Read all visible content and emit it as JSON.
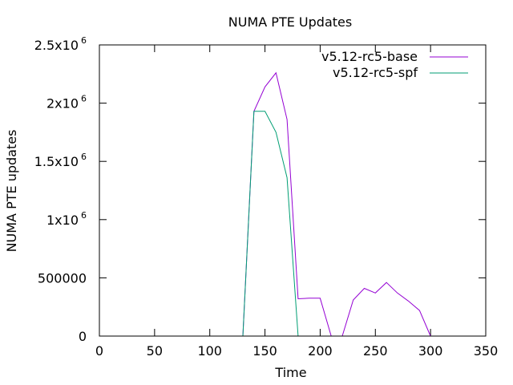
{
  "chart_data": {
    "type": "line",
    "title": "NUMA PTE Updates",
    "xlabel": "Time",
    "ylabel": "NUMA PTE updates",
    "xlim": [
      0,
      350
    ],
    "ylim": [
      0,
      2500000
    ],
    "grid": false,
    "legend_position": "top-right",
    "x_ticks": [
      {
        "value": 0,
        "label": "0"
      },
      {
        "value": 50,
        "label": "50"
      },
      {
        "value": 100,
        "label": "100"
      },
      {
        "value": 150,
        "label": "150"
      },
      {
        "value": 200,
        "label": "200"
      },
      {
        "value": 250,
        "label": "250"
      },
      {
        "value": 300,
        "label": "300"
      },
      {
        "value": 350,
        "label": "350"
      }
    ],
    "y_ticks": [
      {
        "value": 0,
        "mantissa": "0",
        "exponent": ""
      },
      {
        "value": 500000,
        "mantissa": "500000",
        "exponent": ""
      },
      {
        "value": 1000000,
        "mantissa": "1x10",
        "exponent": "6"
      },
      {
        "value": 1500000,
        "mantissa": "1.5x10",
        "exponent": "6"
      },
      {
        "value": 2000000,
        "mantissa": "2x10",
        "exponent": "6"
      },
      {
        "value": 2500000,
        "mantissa": "2.5x10",
        "exponent": "6"
      }
    ],
    "series": [
      {
        "name": "v5.12-rc5-base",
        "color": "#9400d3",
        "x": [
          130,
          140,
          150,
          160,
          170,
          180,
          190,
          200,
          210,
          220,
          230,
          240,
          250,
          260,
          270,
          280,
          290,
          300
        ],
        "y": [
          0,
          1930000,
          2140000,
          2260000,
          1860000,
          320000,
          325000,
          325000,
          0,
          0,
          310000,
          410000,
          370000,
          460000,
          370000,
          300000,
          220000,
          0
        ]
      },
      {
        "name": "v5.12-rc5-spf",
        "color": "#009e73",
        "x": [
          130,
          140,
          150,
          160,
          170,
          180
        ],
        "y": [
          0,
          1930000,
          1930000,
          1750000,
          1360000,
          0
        ]
      }
    ]
  }
}
